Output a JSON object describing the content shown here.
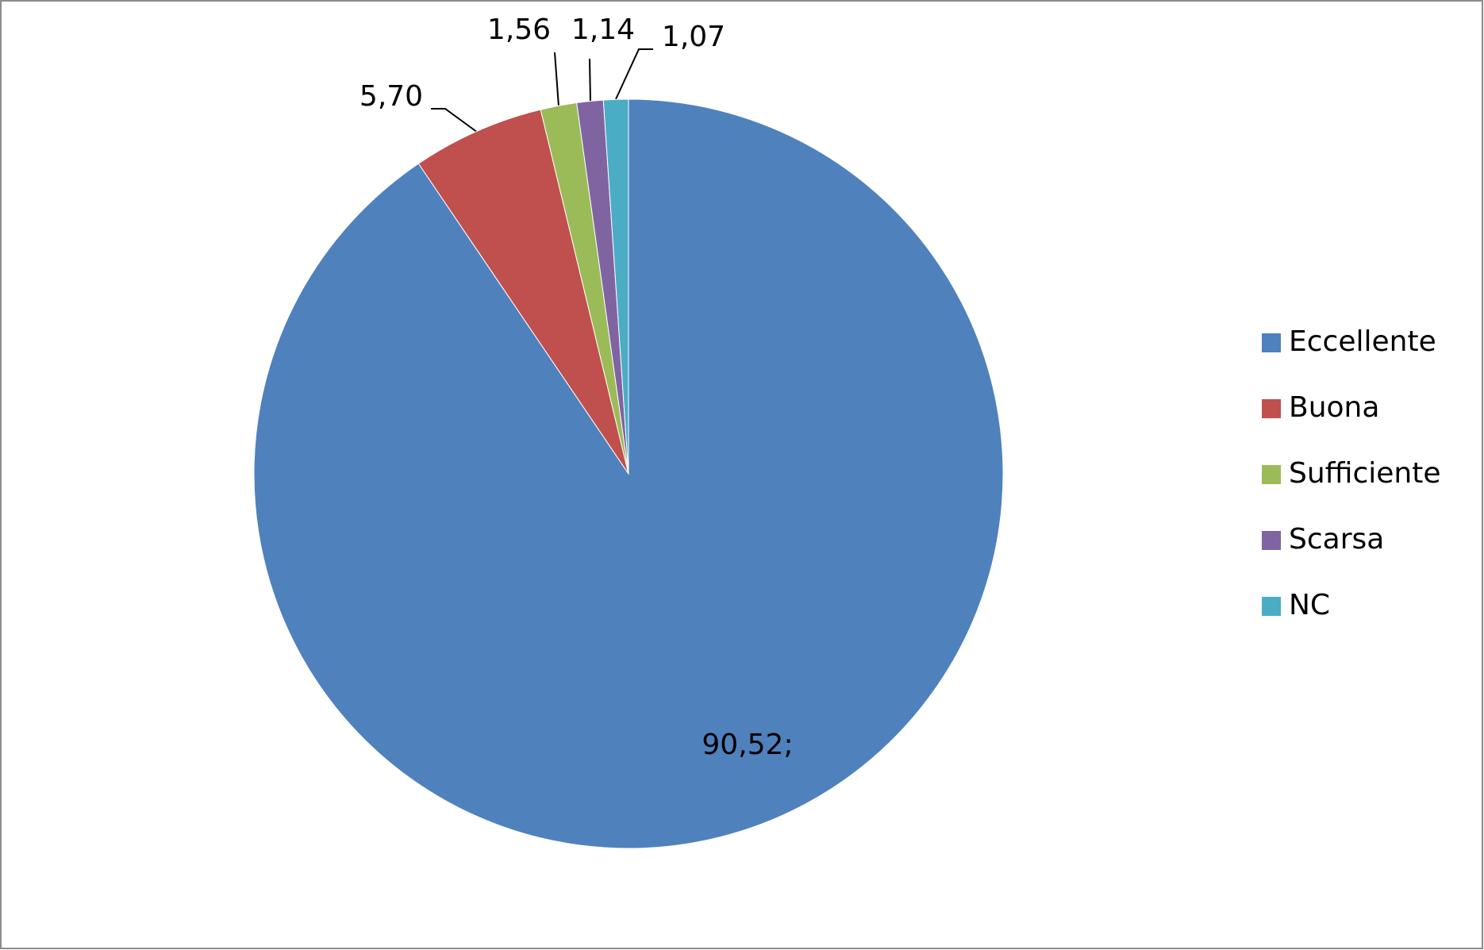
{
  "chart_data": {
    "type": "pie",
    "categories": [
      "Eccellente",
      "Buona",
      "Sufficiente",
      "Scarsa",
      "NC"
    ],
    "values": [
      90.52,
      5.7,
      1.56,
      1.14,
      1.07
    ],
    "value_labels": [
      "90,52;",
      "5,70",
      "1,56",
      "1,14",
      "1,07"
    ],
    "colors": [
      "#4f81bd",
      "#c0504d",
      "#9bbb59",
      "#8064a2",
      "#4bacc6"
    ],
    "legend": "right"
  }
}
